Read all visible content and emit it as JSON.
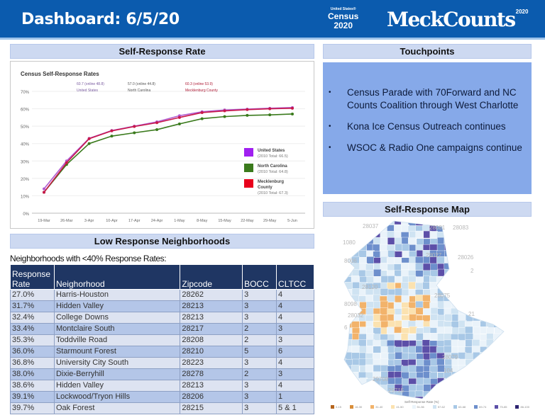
{
  "header": {
    "title": "Dashboard: 6/5/20",
    "census_logo": {
      "small": "United States®",
      "main": "Census",
      "year": "2020"
    },
    "brand": "MeckCounts",
    "brand_sup": "2020",
    "bg_color": "#0b5bae"
  },
  "sections": {
    "self_response_rate": "Self-Response Rate",
    "low_response": "Low Response Neighborhoods",
    "touchpoints": "Touchpoints",
    "map": "Self-Response Map"
  },
  "chart_data": {
    "type": "line",
    "title": "Census Self-Response Rates",
    "categories": [
      "19-Mar",
      "26-Mar",
      "3-Apr",
      "10-Apr",
      "17-Apr",
      "24-Apr",
      "1-May",
      "8-May",
      "15-May",
      "22-May",
      "29-May",
      "5-Jun"
    ],
    "yticks": [
      "0%",
      "10%",
      "20%",
      "30%",
      "40%",
      "50%",
      "60%",
      "70%"
    ],
    "ylim": [
      0,
      70
    ],
    "grid": true,
    "legend_position": "right",
    "annotations": [
      {
        "value": "60.7 (online 48.8)",
        "label": "United States",
        "color": "#7a5ca0"
      },
      {
        "value": "57.0 (online 44.8)",
        "label": "North Carolina",
        "color": "#555555"
      },
      {
        "value": "60.3 (online 53.9)",
        "label": "Mecklenburg County",
        "color": "#b0203a"
      }
    ],
    "series": [
      {
        "name": "United States",
        "note": "(2010 Total: 66.5)",
        "color": "#a020f0",
        "line_color": "#b05ad0",
        "values": [
          14,
          30,
          43,
          47.5,
          50,
          52.5,
          56,
          58.3,
          59.3,
          59.8,
          60.3,
          60.7
        ]
      },
      {
        "name": "North Carolina",
        "note": "(2010 Total: 64.8)",
        "color": "#3a7a1c",
        "line_color": "#3a7a1c",
        "values": [
          12,
          28,
          40,
          44.3,
          46.2,
          48,
          51.3,
          54.3,
          55.5,
          56.2,
          56.5,
          57.0
        ]
      },
      {
        "name": "Mecklenburg County",
        "note": "(2010 Total: 67.3)",
        "color": "#e8001c",
        "line_color": "#c8184a",
        "values": [
          12,
          29,
          42.8,
          47.3,
          49.8,
          52,
          55,
          57.8,
          58.8,
          59.5,
          60,
          60.3
        ]
      }
    ]
  },
  "table": {
    "caption": "Neighborhoods with <40% Response Rates:",
    "headers": [
      "Response Rate",
      "Neighorhood",
      "Zipcode",
      "BOCC",
      "CLTCC"
    ],
    "rows": [
      [
        "27.0%",
        "Harris-Houston",
        "28262",
        "3",
        "4"
      ],
      [
        "31.7%",
        "Hidden Valley",
        "28213",
        "3",
        "4"
      ],
      [
        "32.4%",
        "College Downs",
        "28213",
        "3",
        "4"
      ],
      [
        "33.4%",
        "Montclaire South",
        "28217",
        "2",
        "3"
      ],
      [
        "35.3%",
        "Toddville Road",
        "28208",
        "2",
        "3"
      ],
      [
        "36.0%",
        "Starmount Forest",
        "28210",
        "5",
        "6"
      ],
      [
        "36.8%",
        "University City South",
        "28223",
        "3",
        "4"
      ],
      [
        "38.0%",
        "Dixie-Berryhill",
        "28278",
        "2",
        "3"
      ],
      [
        "38.6%",
        "Hidden Valley",
        "28213",
        "3",
        "4"
      ],
      [
        "39.1%",
        "Lockwood/Tryon Hills",
        "28206",
        "3",
        "1"
      ],
      [
        "39.7%",
        "Oak Forest",
        "28215",
        "3",
        "5 & 1"
      ]
    ]
  },
  "touchpoints": [
    "Census Parade with 70Forward and NC Counts Coalition through West Charlotte",
    "Kona Ice Census Outreach continues",
    "WSOC & Radio One campaigns continue"
  ],
  "map": {
    "zip_labels": [
      "28037",
      "28081",
      "28083",
      "1080",
      "28027",
      "8006",
      "28026",
      "2",
      "28120",
      "28075",
      "8098",
      "28032",
      "21",
      "6",
      "28079",
      "104",
      "29708",
      "29715"
    ],
    "legend_title": "Self-Response Rate (%)",
    "legend": [
      {
        "label": "0-15",
        "color": "#b5651d"
      },
      {
        "label": "16-30",
        "color": "#d98e3a"
      },
      {
        "label": "31-40",
        "color": "#f2b36b"
      },
      {
        "label": "41-50",
        "color": "#fbe2b0"
      },
      {
        "label": "51-56",
        "color": "#eaf3fa"
      },
      {
        "label": "57-62",
        "color": "#cfe3f2"
      },
      {
        "label": "63-68",
        "color": "#a8c8e6"
      },
      {
        "label": "69-74",
        "color": "#6d8fcc"
      },
      {
        "label": "75-85",
        "color": "#5c4fa8"
      },
      {
        "label": "86-100",
        "color": "#2c2370"
      }
    ]
  }
}
